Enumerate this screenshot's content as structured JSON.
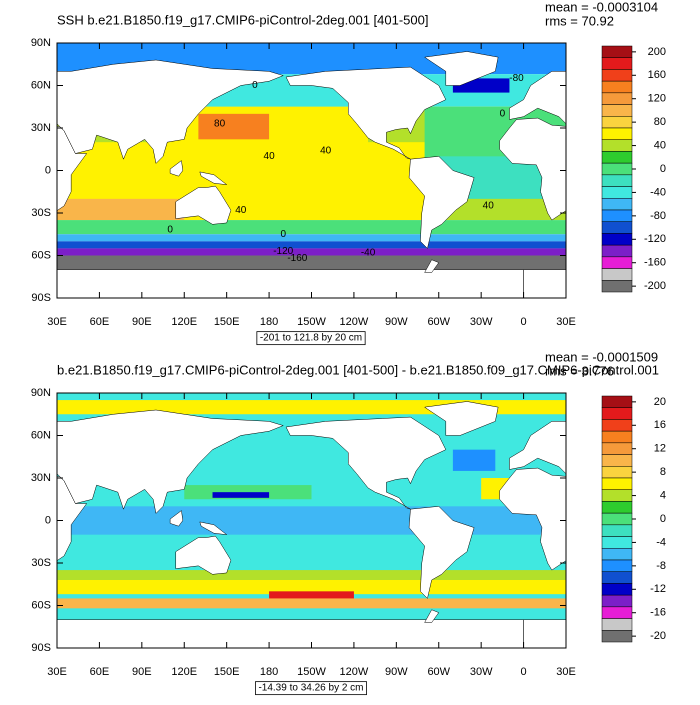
{
  "panels": [
    {
      "title": "SSH b.e21.B1850.f19_g17.CMIP6-piControl-2deg.001 [401-500]",
      "mean": "mean = -0.0003104",
      "rms": "rms = 70.92",
      "range_label": "-201 to 121.8 by 20 cm",
      "xlim": [
        30,
        390
      ],
      "ylim": [
        -90,
        90
      ],
      "lat_ticks": [
        {
          "value": 90,
          "label": "90N"
        },
        {
          "value": 60,
          "label": "60N"
        },
        {
          "value": 30,
          "label": "30N"
        },
        0,
        {
          "value": -30,
          "label": "30S"
        },
        {
          "value": -60,
          "label": "60S"
        },
        {
          "value": -90,
          "label": "90S"
        }
      ],
      "lon_ticks": [
        {
          "value": 30,
          "label": "30E"
        },
        {
          "value": 60,
          "label": "60E"
        },
        {
          "value": 90,
          "label": "90E"
        },
        {
          "value": 120,
          "label": "120E"
        },
        {
          "value": 150,
          "label": "150E"
        },
        180,
        {
          "value": 210,
          "label": "150W"
        },
        {
          "value": 240,
          "label": "120W"
        },
        {
          "value": 270,
          "label": "90W"
        },
        {
          "value": 300,
          "label": "60W"
        },
        {
          "value": 330,
          "label": "30W"
        },
        {
          "value": 360,
          "label": "0"
        },
        {
          "value": 390,
          "label": "30E"
        }
      ],
      "contour_labels": [
        80,
        40,
        40,
        40,
        0,
        0,
        0,
        -80,
        -40,
        -160,
        -120,
        40,
        0
      ],
      "colorbar": {
        "labels": [
          200,
          160,
          120,
          80,
          40,
          0,
          -40,
          -80,
          -120,
          -160,
          -200
        ],
        "colors": [
          "#a50f15",
          "#e31a1c",
          "#f0401a",
          "#f7801f",
          "#f59a3b",
          "#f9b54a",
          "#fad33f",
          "#fff200",
          "#b3e02a",
          "#2ecc2e",
          "#4be07a",
          "#3de0c0",
          "#40e8e0",
          "#3fb7f5",
          "#1e90ff",
          "#1050d0",
          "#0000c8",
          "#7c1fc8",
          "#e61ed6",
          "#c8c8c8",
          "#707070"
        ]
      }
    },
    {
      "title": "b.e21.B1850.f19_g17.CMIP6-piControl-2deg.001 [401-500] - b.e21.B1850.f09_g17.CMIP6-piControl.001",
      "mean": "mean = -0.0001509",
      "rms": "rms = 3.776",
      "range_label": "-14.39 to 34.26 by 2 cm",
      "xlim": [
        30,
        390
      ],
      "ylim": [
        -90,
        90
      ],
      "lat_ticks": [
        {
          "value": 90,
          "label": "90N"
        },
        {
          "value": 60,
          "label": "60N"
        },
        {
          "value": 30,
          "label": "30N"
        },
        0,
        {
          "value": -30,
          "label": "30S"
        },
        {
          "value": -60,
          "label": "60S"
        },
        {
          "value": -90,
          "label": "90S"
        }
      ],
      "lon_ticks": [
        {
          "value": 30,
          "label": "30E"
        },
        {
          "value": 60,
          "label": "60E"
        },
        {
          "value": 90,
          "label": "90E"
        },
        {
          "value": 120,
          "label": "120E"
        },
        {
          "value": 150,
          "label": "150E"
        },
        180,
        {
          "value": 210,
          "label": "150W"
        },
        {
          "value": 240,
          "label": "120W"
        },
        {
          "value": 270,
          "label": "90W"
        },
        {
          "value": 300,
          "label": "60W"
        },
        {
          "value": 330,
          "label": "30W"
        },
        {
          "value": 360,
          "label": "0"
        },
        {
          "value": 390,
          "label": "30E"
        }
      ],
      "colorbar": {
        "labels": [
          20,
          16,
          12,
          8,
          4,
          0,
          -4,
          -8,
          -12,
          -16,
          -20
        ],
        "colors": [
          "#a50f15",
          "#e31a1c",
          "#f0401a",
          "#f7801f",
          "#f59a3b",
          "#f9b54a",
          "#fad33f",
          "#fff200",
          "#b3e02a",
          "#2ecc2e",
          "#4be07a",
          "#3de0c0",
          "#40e8e0",
          "#3fb7f5",
          "#1e90ff",
          "#1050d0",
          "#0000c8",
          "#7c1fc8",
          "#e61ed6",
          "#c8c8c8",
          "#707070"
        ]
      }
    }
  ]
}
